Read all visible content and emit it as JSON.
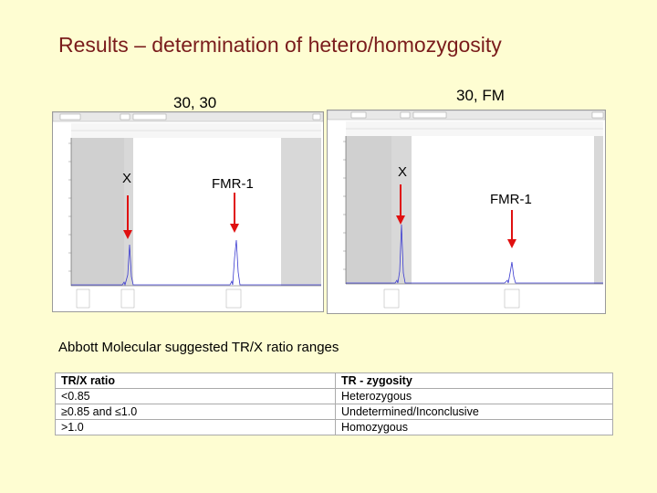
{
  "slide": {
    "title": "Results – determination of hetero/homozygosity",
    "left_panel": {
      "label": "30, 30",
      "x_marker": "X",
      "gene_marker": "FMR-1"
    },
    "right_panel": {
      "label": "30, FM",
      "x_marker": "X",
      "gene_marker": "FMR-1"
    },
    "table_caption": "Abbott Molecular suggested TR/X ratio ranges",
    "table": {
      "headers": [
        "TR/X ratio",
        "TR - zygosity"
      ],
      "rows": [
        [
          "<0.85",
          "Heterozygous"
        ],
        [
          "≥0.85 and ≤1.0",
          "Undetermined/Inconclusive"
        ],
        [
          ">1.0",
          "Homozygous"
        ]
      ]
    },
    "colors": {
      "title": "#7a1c1c",
      "background": "#fefdd2",
      "trace": "#3a3ad0",
      "arrow": "#e01010"
    }
  }
}
